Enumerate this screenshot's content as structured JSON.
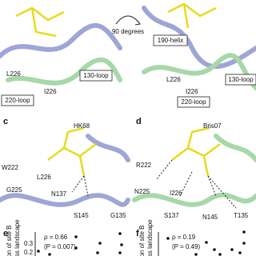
{
  "top": {
    "rotation": "90 degrees",
    "left": {
      "residues": [
        "L226",
        "I226"
      ],
      "loops": [
        "220-loop",
        "130-loop"
      ]
    },
    "right": {
      "helix": "190-helix",
      "residues": [
        "L226",
        "I226"
      ],
      "loops": [
        "130-loop",
        "220-loop"
      ]
    }
  },
  "panel_c": {
    "label": "c",
    "strain": "HK68",
    "residues": [
      "W222",
      "L226",
      "G225",
      "N137",
      "S145",
      "G135"
    ]
  },
  "panel_d": {
    "label": "d",
    "strain": "Bris07",
    "residues": [
      "R222",
      "N225",
      "I226",
      "S137",
      "N145",
      "T135"
    ]
  },
  "panel_e": {
    "label": "e",
    "rho": "ρ = 0.66",
    "p": "(P = 0.007)",
    "ylabel": [
      "ation of site B",
      "ness landscape"
    ],
    "yticks": [
      "0.3",
      "0.2"
    ]
  },
  "panel_f": {
    "label": "f",
    "rho": "ρ = 0.19",
    "p": "(P = 0.49)",
    "ylabel": [
      "ation of site B",
      "ness landscape"
    ]
  }
}
